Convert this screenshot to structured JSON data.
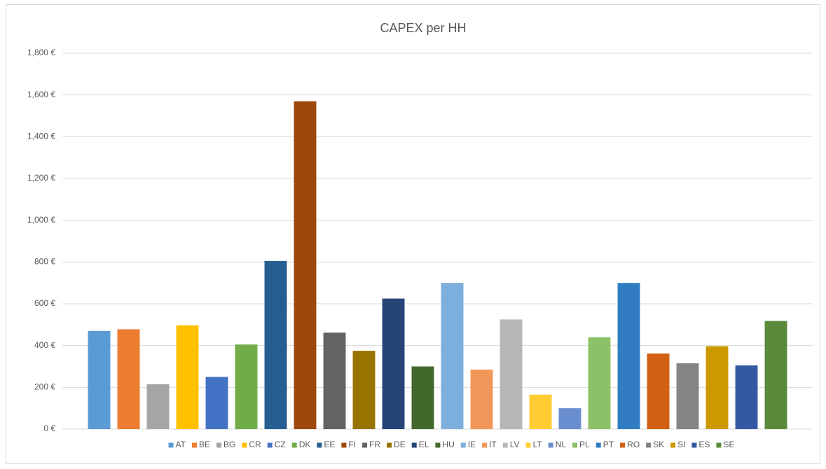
{
  "chart_data": {
    "type": "bar",
    "title": "CAPEX per HH",
    "categories": [
      null
    ],
    "series": [
      {
        "name": "AT",
        "color": "#5b9bd5",
        "values": [
          470
        ]
      },
      {
        "name": "BE",
        "color": "#ed7d31",
        "values": [
          478
        ]
      },
      {
        "name": "BG",
        "color": "#a5a5a5",
        "values": [
          215
        ]
      },
      {
        "name": "CR",
        "color": "#ffc000",
        "values": [
          497
        ]
      },
      {
        "name": "CZ",
        "color": "#4472c4",
        "values": [
          250
        ]
      },
      {
        "name": "DK",
        "color": "#70ad47",
        "values": [
          405
        ]
      },
      {
        "name": "EE",
        "color": "#255e91",
        "values": [
          805
        ]
      },
      {
        "name": "FI",
        "color": "#9e480e",
        "values": [
          1570
        ]
      },
      {
        "name": "FR",
        "color": "#636363",
        "values": [
          462
        ]
      },
      {
        "name": "DE",
        "color": "#997300",
        "values": [
          375
        ]
      },
      {
        "name": "EL",
        "color": "#264478",
        "values": [
          625
        ]
      },
      {
        "name": "HU",
        "color": "#43682b",
        "values": [
          300
        ]
      },
      {
        "name": "IE",
        "color": "#7cafdd",
        "values": [
          700
        ]
      },
      {
        "name": "IT",
        "color": "#f1975a",
        "values": [
          285
        ]
      },
      {
        "name": "LV",
        "color": "#b7b7b7",
        "values": [
          525
        ]
      },
      {
        "name": "LT",
        "color": "#ffcd33",
        "values": [
          165
        ]
      },
      {
        "name": "NL",
        "color": "#698ed0",
        "values": [
          100
        ]
      },
      {
        "name": "PL",
        "color": "#8cc168",
        "values": [
          440
        ]
      },
      {
        "name": "PT",
        "color": "#327dc2",
        "values": [
          700
        ]
      },
      {
        "name": "RO",
        "color": "#d26012",
        "values": [
          362
        ]
      },
      {
        "name": "SK",
        "color": "#848484",
        "values": [
          315
        ]
      },
      {
        "name": "SI",
        "color": "#cc9a00",
        "values": [
          397
        ]
      },
      {
        "name": "ES",
        "color": "#335aa1",
        "values": [
          305
        ]
      },
      {
        "name": "SE",
        "color": "#5a8a39",
        "values": [
          518
        ]
      }
    ],
    "ylim": [
      0,
      1800
    ],
    "yticks": [
      {
        "value": 0,
        "label": "0 €"
      },
      {
        "value": 200,
        "label": "200 €"
      },
      {
        "value": 400,
        "label": "400 €"
      },
      {
        "value": 600,
        "label": "600 €"
      },
      {
        "value": 800,
        "label": "800 €"
      },
      {
        "value": 1000,
        "label": "1,000 €"
      },
      {
        "value": 1200,
        "label": "1,200 €"
      },
      {
        "value": 1400,
        "label": "1,400 €"
      },
      {
        "value": 1600,
        "label": "1,600 €"
      },
      {
        "value": 1800,
        "label": "1,800 €"
      }
    ],
    "grid": true,
    "legend": "bottom"
  }
}
